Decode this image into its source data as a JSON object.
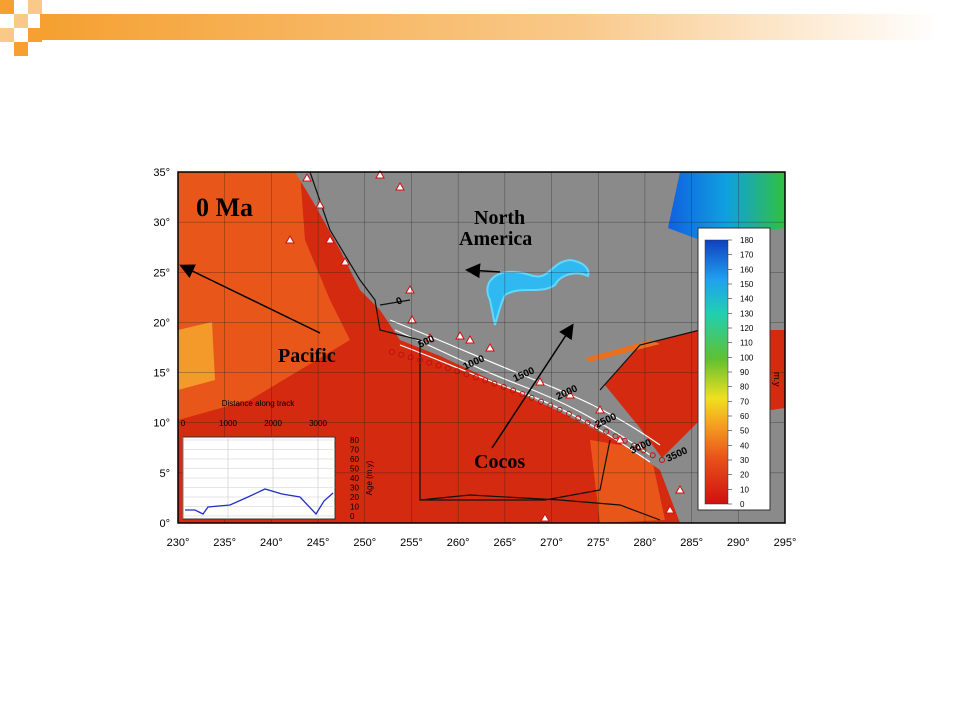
{
  "map": {
    "lat_labels": [
      "35°",
      "30°",
      "25°",
      "20°",
      "15°",
      "10°",
      "5°",
      "0°"
    ],
    "lon_labels": [
      "230°",
      "235°",
      "240°",
      "245°",
      "250°",
      "255°",
      "260°",
      "265°",
      "270°",
      "275°",
      "280°",
      "285°",
      "290°",
      "295°"
    ],
    "annotations": {
      "age": "0 Ma",
      "north_america": [
        "North",
        "America"
      ],
      "pacific": "Pacific",
      "cocos": "Cocos"
    },
    "contour_labels": [
      "0",
      "500",
      "1000",
      "1500",
      "2000",
      "2500",
      "3000",
      "3500"
    ]
  },
  "colorbar": {
    "unit": "m.y",
    "ticks": [
      "180",
      "170",
      "160",
      "150",
      "140",
      "130",
      "120",
      "110",
      "100",
      "90",
      "80",
      "70",
      "60",
      "50",
      "40",
      "30",
      "20",
      "10",
      "0"
    ]
  },
  "inset": {
    "title": "Distance along track",
    "x_ticks": [
      "0",
      "1000",
      "2000",
      "3000"
    ],
    "y_label": "Age (m.y)",
    "y_ticks": [
      "80",
      "70",
      "60",
      "50",
      "40",
      "30",
      "20",
      "10",
      "0"
    ]
  }
}
